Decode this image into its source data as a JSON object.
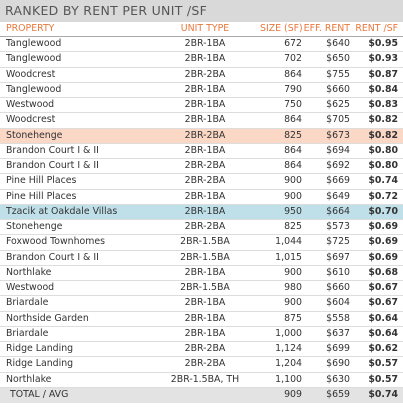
{
  "title": "RANKED BY RENT PER UNIT /SF",
  "table": {
    "header": [
      "PROPERTY",
      "UNIT TYPE",
      "SIZE (SF)",
      "EFF. RENT",
      "RENT /SF"
    ],
    "rows": [
      [
        "Tanglewood",
        "2BR-1BA",
        "672",
        "$640",
        "$0.95"
      ],
      [
        "Tanglewood",
        "2BR-1BA",
        "702",
        "$650",
        "$0.93"
      ],
      [
        "Woodcrest",
        "2BR-2BA",
        "864",
        "$755",
        "$0.87"
      ],
      [
        "Tanglewood",
        "2BR-1BA",
        "790",
        "$660",
        "$0.84"
      ],
      [
        "Westwood",
        "2BR-1BA",
        "750",
        "$625",
        "$0.83"
      ],
      [
        "Woodcrest",
        "2BR-1BA",
        "864",
        "$705",
        "$0.82"
      ],
      [
        "Stonehenge",
        "2BR-2BA",
        "825",
        "$673",
        "$0.82"
      ],
      [
        "Brandon Court I & II",
        "2BR-1BA",
        "864",
        "$694",
        "$0.80"
      ],
      [
        "Brandon Court I & II",
        "2BR-2BA",
        "864",
        "$692",
        "$0.80"
      ],
      [
        "Pine Hill Places",
        "2BR-2BA",
        "900",
        "$669",
        "$0.74"
      ],
      [
        "Pine Hill Places",
        "2BR-1BA",
        "900",
        "$649",
        "$0.72"
      ],
      [
        "Tzacik at Oakdale Villas",
        "2BR-1BA",
        "950",
        "$664",
        "$0.70"
      ],
      [
        "Stonehenge",
        "2BR-2BA",
        "825",
        "$573",
        "$0.69"
      ],
      [
        "Foxwood Townhomes",
        "2BR-1.5BA",
        "1,044",
        "$725",
        "$0.69"
      ],
      [
        "Brandon Court I & II",
        "2BR-1.5BA",
        "1,015",
        "$697",
        "$0.69"
      ],
      [
        "Northlake",
        "2BR-1BA",
        "900",
        "$610",
        "$0.68"
      ],
      [
        "Westwood",
        "2BR-1.5BA",
        "980",
        "$660",
        "$0.67"
      ],
      [
        "Briardale",
        "2BR-1BA",
        "900",
        "$604",
        "$0.67"
      ],
      [
        "Northside Garden",
        "2BR-1BA",
        "875",
        "$558",
        "$0.64"
      ],
      [
        "Briardale",
        "2BR-1BA",
        "1,000",
        "$637",
        "$0.64"
      ],
      [
        "Ridge Landing",
        "2BR-2BA",
        "1,124",
        "$699",
        "$0.62"
      ],
      [
        "Ridge Landing",
        "2BR-2BA",
        "1,204",
        "$690",
        "$0.57"
      ],
      [
        "Northlake",
        "2BR-1.5BA, TH",
        "1,100",
        "$630",
        "$0.57"
      ]
    ],
    "total": [
      "TOTAL / AVG",
      "",
      "909",
      "$659",
      "$0.74"
    ]
  }
}
